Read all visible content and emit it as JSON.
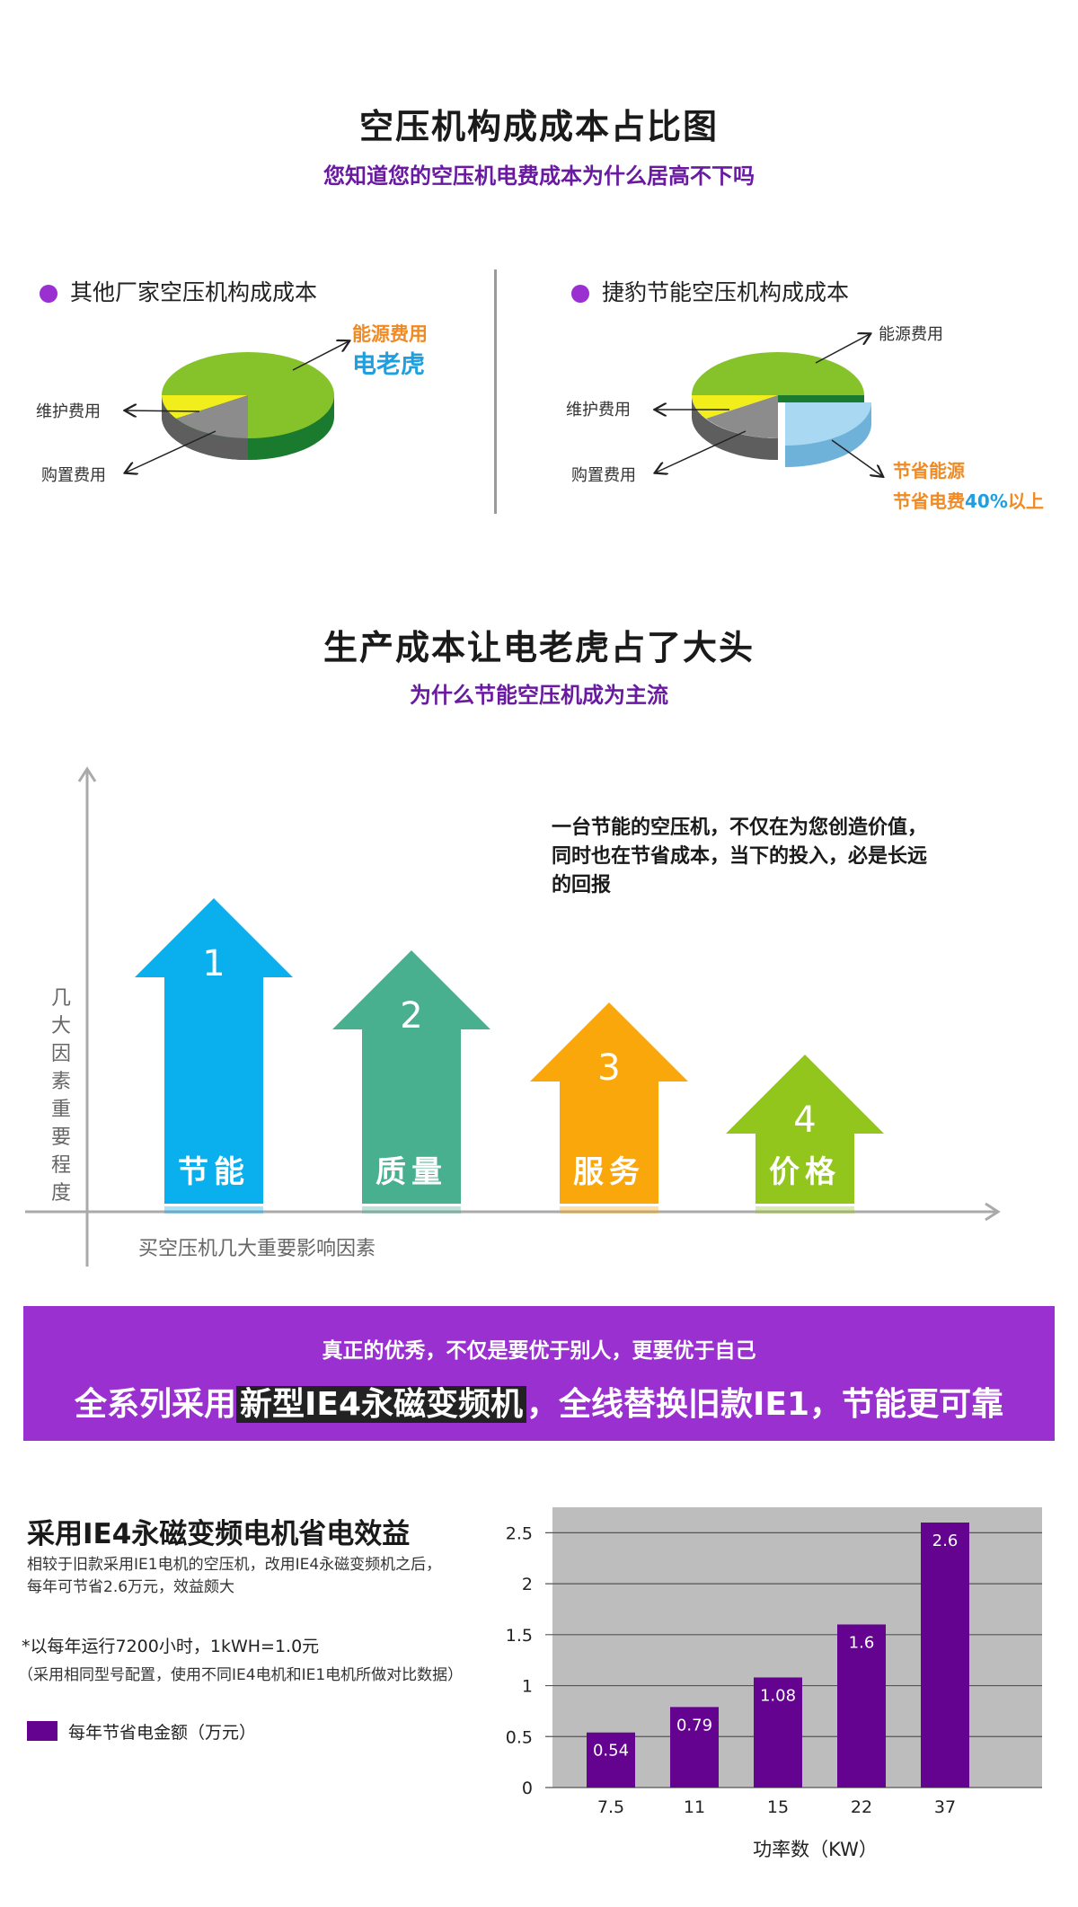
{
  "section1": {
    "title": "空压机构成成本占比图",
    "subtitle": "您知道您的空压机电费成本为什么居高不下吗",
    "left": {
      "legend": "其他厂家空压机构成成本",
      "energy_label": "能源费用",
      "energy_sub": "电老虎",
      "maint_label": "维护费用",
      "purchase_label": "购置费用"
    },
    "right": {
      "legend": "捷豹节能空压机构成成本",
      "energy_label": "能源费用",
      "maint_label": "维护费用",
      "purchase_label": "购置费用",
      "save_label": "节省能源",
      "save_line_prefix": "节省电费",
      "save_line_pct": "40%",
      "save_line_suffix": "以上"
    },
    "colors": {
      "energy": "#86c22a",
      "maint": "#f2ee1c",
      "purchase": "#8c8c8c",
      "saved": "#a8d8f2",
      "dark_green": "#1a7a2e"
    }
  },
  "section2": {
    "title": "生产成本让电老虎占了大头",
    "subtitle": "为什么节能空压机成为主流",
    "quote_lines": [
      "一台节能的空压机，不仅在为您创造价值，",
      "同时也在节省成本，当下的投入，必是长远",
      "的回报"
    ],
    "y_axis_label": "几大因素重要程度",
    "x_axis_label": "买空压机几大重要影响因素",
    "arrows": [
      {
        "num": "1",
        "label": "节能",
        "color": "#0ab0ee",
        "level": 4
      },
      {
        "num": "2",
        "label": "质量",
        "color": "#48b08e",
        "level": 3
      },
      {
        "num": "3",
        "label": "服务",
        "color": "#f9a70a",
        "level": 2
      },
      {
        "num": "4",
        "label": "价格",
        "color": "#93c61c",
        "level": 1
      }
    ]
  },
  "banner": {
    "subtitle": "真正的优秀，不仅是要优于别人，更要优于自己",
    "main_prefix": "全系列采用",
    "main_highlight": "新型IE4永磁变频机",
    "main_suffix": "，全线替换旧款IE1，节能更可靠"
  },
  "section3": {
    "title": "采用IE4永磁变频电机省电效益",
    "desc_line1": "相较于旧款采用IE1电机的空压机，改用IE4永磁变频机之后，",
    "desc_line2": "每年可节省2.6万元，效益颇大",
    "note1": "*以每年运行7200小时，1kWH=1.0元",
    "note2": "（采用相同型号配置，使用不同IE4电机和IE1电机所做对比数据）",
    "legend": "每年节省电金额（万元）"
  },
  "chart_data": {
    "type": "bar",
    "categories": [
      "7.5",
      "11",
      "15",
      "22",
      "37"
    ],
    "series": [
      {
        "name": "每年节省电金额（万元）",
        "values": [
          0.54,
          0.79,
          1.08,
          1.6,
          2.6
        ]
      }
    ],
    "data_labels": [
      "0.54",
      "0.79",
      "1.08",
      "1.6",
      "2.6"
    ],
    "yticks": [
      "0",
      "0.5",
      "1",
      "1.5",
      "2",
      "2.5"
    ],
    "ylim": [
      0,
      2.75
    ],
    "xlabel": "功率数（KW）",
    "ylabel": "",
    "bar_color": "#63038f",
    "bg_color": "#bdbdbd",
    "grid": true
  }
}
